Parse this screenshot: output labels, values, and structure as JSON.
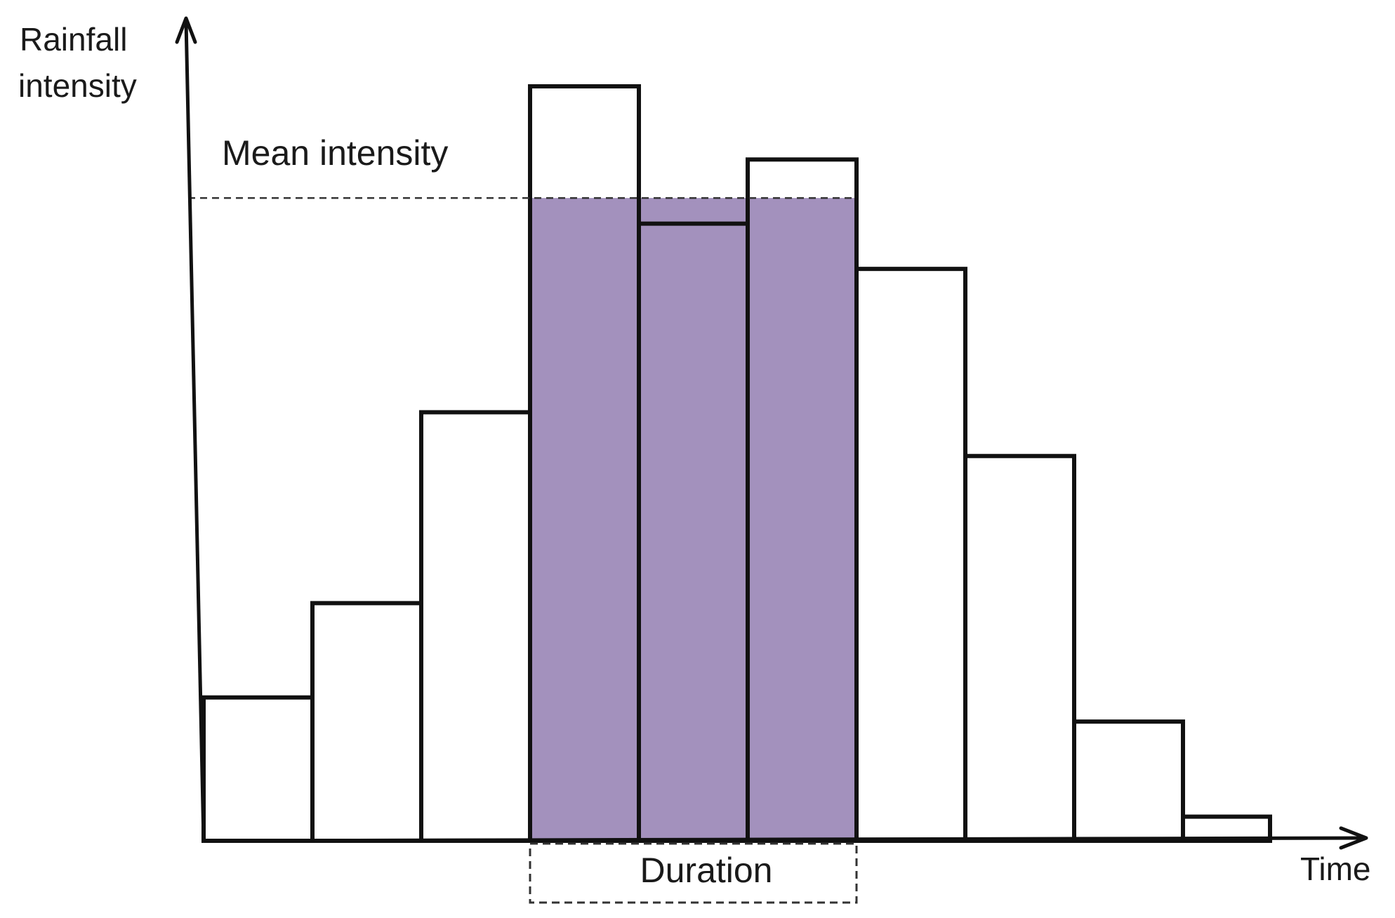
{
  "chart_data": {
    "type": "bar",
    "title": "",
    "ylabel_line1": "Rainfall",
    "ylabel_line2": "intensity",
    "xlabel": "Time",
    "grid": false,
    "ylim": [
      0,
      1000
    ],
    "bars": [
      {
        "start": 0,
        "end": 1,
        "value": 190
      },
      {
        "start": 1,
        "end": 2,
        "value": 315
      },
      {
        "start": 2,
        "end": 3,
        "value": 568
      },
      {
        "start": 3,
        "end": 4,
        "value": 1000
      },
      {
        "start": 4,
        "end": 5,
        "value": 818
      },
      {
        "start": 5,
        "end": 6,
        "value": 903
      },
      {
        "start": 6,
        "end": 7,
        "value": 758
      },
      {
        "start": 7,
        "end": 8,
        "value": 510
      },
      {
        "start": 8,
        "end": 9,
        "value": 158
      },
      {
        "start": 9,
        "end": 9.8,
        "value": 32
      }
    ],
    "mean_intensity": {
      "label": "Mean intensity",
      "value": 852
    },
    "duration": {
      "label": "Duration",
      "start": 3,
      "end": 6
    },
    "colors": {
      "highlight": "#a391bd",
      "bar_outline": "#111111",
      "bar_fill": "#ffffff",
      "axis": "#111111",
      "dashed_line": "#333333"
    }
  }
}
